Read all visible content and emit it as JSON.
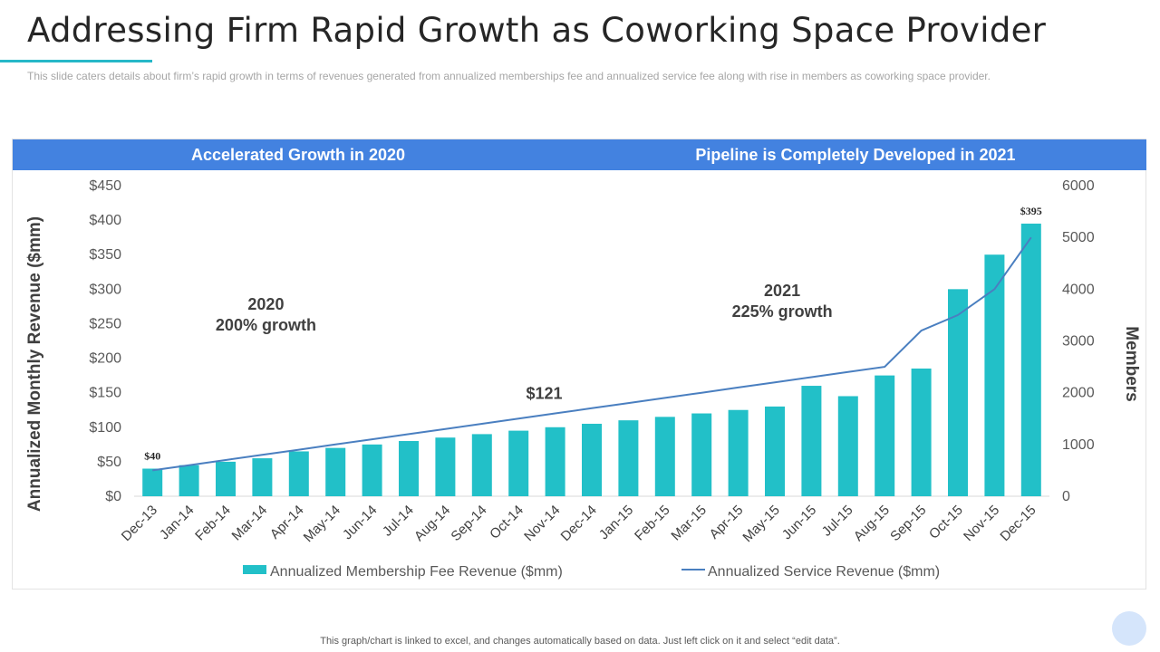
{
  "slide": {
    "title": "Addressing Firm Rapid Growth as Coworking Space Provider",
    "subtitle": "This slide caters details about firm’s rapid growth in terms of revenues generated from annualized memberships fee and annualized service fee along with rise in members as coworking space provider.",
    "footer": "This graph/chart is linked to excel, and changes automatically based on data. Just left click on it and select “edit data”."
  },
  "banner": {
    "left": "Accelerated Growth in 2020",
    "right": "Pipeline is Completely Developed in 2021",
    "color": "#4382e0"
  },
  "chart_data": {
    "type": "bar",
    "categories": [
      "Dec-13",
      "Jan-14",
      "Feb-14",
      "Mar-14",
      "Apr-14",
      "May-14",
      "Jun-14",
      "Jul-14",
      "Aug-14",
      "Sep-14",
      "Oct-14",
      "Nov-14",
      "Dec-14",
      "Jan-15",
      "Feb-15",
      "Mar-15",
      "Apr-15",
      "May-15",
      "Jun-15",
      "Jul-15",
      "Aug-15",
      "Sep-15",
      "Oct-15",
      "Nov-15",
      "Dec-15"
    ],
    "series": [
      {
        "name": "Annualized Membership Fee Revenue ($mm)",
        "kind": "bar",
        "axis": "left",
        "color": "#22c0c8",
        "values": [
          40,
          45,
          50,
          55,
          65,
          70,
          75,
          80,
          85,
          90,
          95,
          100,
          105,
          110,
          115,
          120,
          125,
          130,
          160,
          145,
          175,
          185,
          300,
          350,
          395
        ]
      },
      {
        "name": "Annualized Service Revenue ($mm)",
        "kind": "line",
        "axis": "right",
        "color": "#4a7fc0",
        "values": [
          500,
          600,
          700,
          800,
          900,
          1000,
          1100,
          1200,
          1300,
          1400,
          1500,
          1600,
          1700,
          1800,
          1900,
          2000,
          2100,
          2200,
          2300,
          2400,
          2500,
          3200,
          3500,
          4000,
          5000
        ]
      }
    ],
    "ylabel": "Annualized Monthly Revenue ($mm)",
    "y2label": "Members",
    "ylim": [
      0,
      450
    ],
    "yticks": [
      0,
      50,
      100,
      150,
      200,
      250,
      300,
      350,
      400,
      450
    ],
    "ytick_labels": [
      "$0",
      "$50",
      "$100",
      "$150",
      "$200",
      "$250",
      "$300",
      "$350",
      "$400",
      "$450"
    ],
    "y2lim": [
      0,
      6000
    ],
    "y2ticks": [
      0,
      1000,
      2000,
      3000,
      4000,
      5000,
      6000
    ],
    "y2tick_labels": [
      "0",
      "1000",
      "2000",
      "3000",
      "4000",
      "5000",
      "6000"
    ],
    "data_labels": [
      {
        "index": 0,
        "text": "$40"
      },
      {
        "index": 24,
        "text": "$395"
      }
    ],
    "annotations": [
      {
        "lines": [
          "2020",
          "200% growth"
        ],
        "category": 3.6,
        "y": 270
      },
      {
        "lines": [
          "2021",
          "225% growth"
        ],
        "category": 17.7,
        "y": 290
      },
      {
        "lines": [
          "$121"
        ],
        "category": 11.2,
        "y": 141
      }
    ],
    "legend": "bottom"
  }
}
